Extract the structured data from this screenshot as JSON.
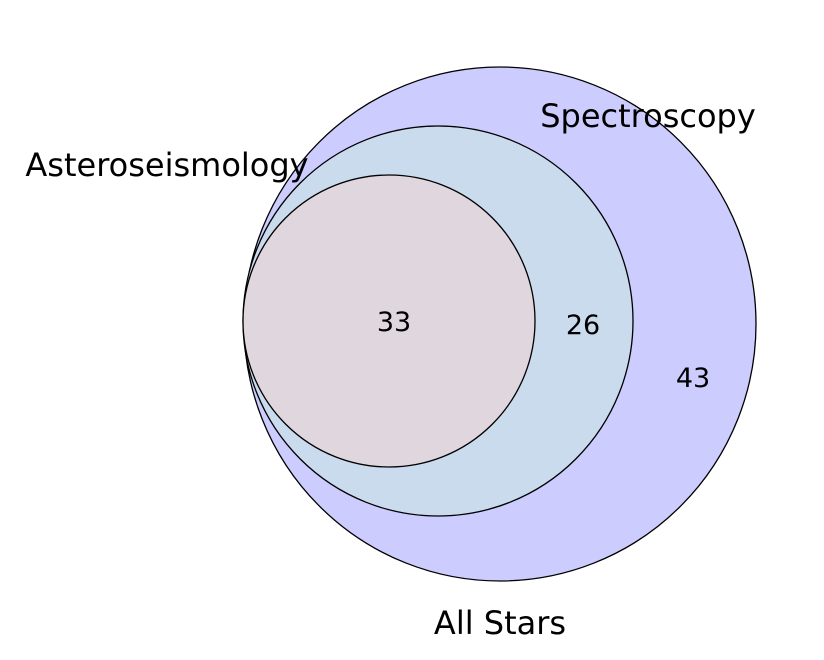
{
  "sets": [
    {
      "name": "All Stars",
      "color": "#ccccff"
    },
    {
      "name": "Spectroscopy",
      "color": "#cadbee"
    },
    {
      "name": "Asteroseismology",
      "color": "#dfd6de"
    }
  ],
  "regions": [
    {
      "label": "33"
    },
    {
      "label": "26"
    },
    {
      "label": "43"
    }
  ]
}
